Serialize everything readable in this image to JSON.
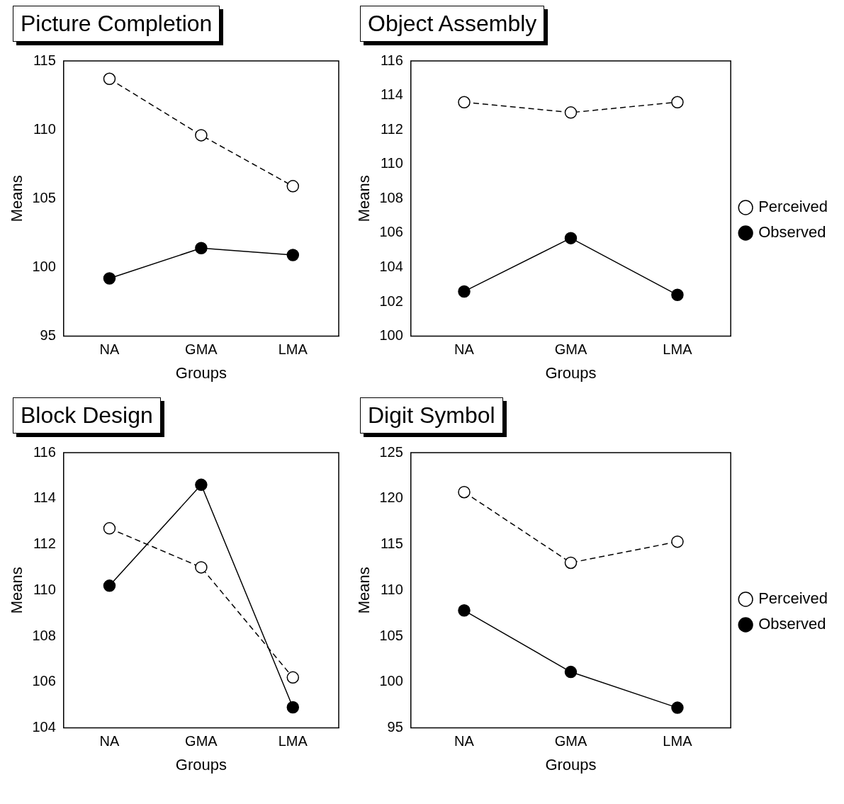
{
  "chart_data": [
    {
      "type": "line",
      "title": "Picture Completion",
      "xlabel": "Groups",
      "ylabel": "Means",
      "categories": [
        "NA",
        "GMA",
        "LMA"
      ],
      "ylim": [
        95,
        115
      ],
      "yticks": [
        95,
        100,
        105,
        110,
        115
      ],
      "grid": false,
      "legend": false,
      "marker": "circle",
      "series": [
        {
          "color": "#000000",
          "line_style": "dashed",
          "values": [
            113.7,
            109.6,
            105.9
          ]
        },
        {
          "color": "#000000",
          "line_style": "solid",
          "values": [
            99.2,
            101.4,
            100.9
          ]
        }
      ]
    },
    {
      "type": "line",
      "title": "Object Assembly",
      "xlabel": "Groups",
      "ylabel": "Means",
      "categories": [
        "NA",
        "GMA",
        "LMA"
      ],
      "ylim": [
        100,
        116
      ],
      "yticks": [
        100,
        102,
        104,
        106,
        108,
        110,
        112,
        114,
        116
      ],
      "grid": false,
      "legend": "right",
      "marker": "circle",
      "series": [
        {
          "name": "Perceived",
          "color": "#000000",
          "line_style": "dashed",
          "values": [
            113.6,
            113.0,
            113.6
          ]
        },
        {
          "name": "Observed",
          "color": "#000000",
          "line_style": "solid",
          "values": [
            102.6,
            105.7,
            102.4
          ]
        }
      ]
    },
    {
      "type": "line",
      "title": "Block Design",
      "xlabel": "Groups",
      "ylabel": "Means",
      "categories": [
        "NA",
        "GMA",
        "LMA"
      ],
      "ylim": [
        104,
        116
      ],
      "yticks": [
        104,
        106,
        108,
        110,
        112,
        114,
        116
      ],
      "grid": false,
      "legend": false,
      "marker": "circle",
      "series": [
        {
          "color": "#000000",
          "line_style": "dashed",
          "values": [
            112.7,
            111.0,
            106.2
          ]
        },
        {
          "color": "#000000",
          "line_style": "solid",
          "values": [
            110.2,
            114.6,
            104.9
          ]
        }
      ]
    },
    {
      "type": "line",
      "title": "Digit Symbol",
      "xlabel": "Groups",
      "ylabel": "Means",
      "categories": [
        "NA",
        "GMA",
        "LMA"
      ],
      "ylim": [
        95,
        125
      ],
      "yticks": [
        95,
        100,
        105,
        110,
        115,
        120,
        125
      ],
      "grid": false,
      "legend": "right",
      "marker": "circle",
      "series": [
        {
          "name": "Perceived",
          "color": "#000000",
          "line_style": "dashed",
          "values": [
            120.7,
            113.0,
            115.3
          ]
        },
        {
          "name": "Observed",
          "color": "#000000",
          "line_style": "solid",
          "values": [
            107.8,
            101.1,
            97.2
          ]
        }
      ]
    }
  ]
}
